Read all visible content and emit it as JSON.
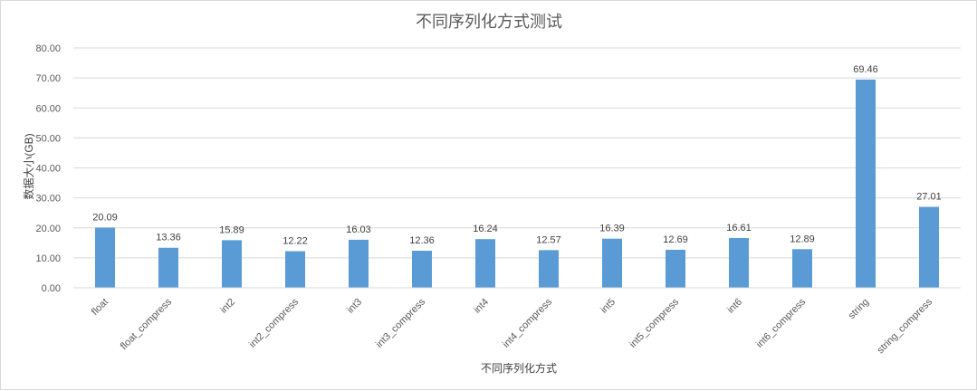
{
  "chart_data": {
    "type": "bar",
    "title": "不同序列化方式测试",
    "xlabel": "不同序列化方式",
    "ylabel": "数据大小(GB)",
    "ylim": [
      0,
      80
    ],
    "yticks": [
      "0.00",
      "10.00",
      "20.00",
      "30.00",
      "40.00",
      "50.00",
      "60.00",
      "70.00",
      "80.00"
    ],
    "categories": [
      "float",
      "float_compress",
      "int2",
      "int2_compress",
      "int3",
      "int3_compress",
      "int4",
      "int4_compress",
      "int5",
      "int5_compress",
      "int6",
      "int6_compress",
      "string",
      "string_compress"
    ],
    "values": [
      20.09,
      13.36,
      15.89,
      12.22,
      16.03,
      12.36,
      16.24,
      12.57,
      16.39,
      12.69,
      16.61,
      12.89,
      69.46,
      27.01
    ],
    "value_labels": [
      "20.09",
      "13.36",
      "15.89",
      "12.22",
      "16.03",
      "12.36",
      "16.24",
      "12.57",
      "16.39",
      "12.69",
      "16.61",
      "12.89",
      "69.46",
      "27.01"
    ],
    "grid": true,
    "legend": "none",
    "bar_color": "#5b9bd5",
    "grid_color": "#d9d9d9"
  }
}
